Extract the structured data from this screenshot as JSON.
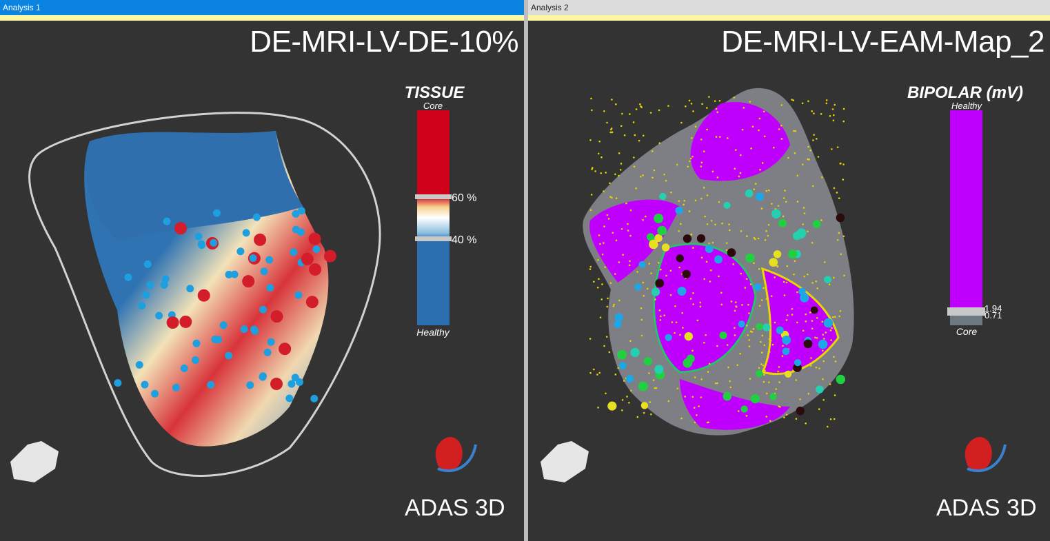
{
  "panels": [
    {
      "tab": "Analysis 1",
      "title": "DE-MRI-LV-DE-10%",
      "legend": {
        "title": "TISSUE",
        "top_label": "Core",
        "bottom_label": "Healthy",
        "markers": [
          "60 %",
          "40 %"
        ]
      },
      "logo": "ADAS 3D"
    },
    {
      "tab": "Analysis 2",
      "title": "DE-MRI-LV-EAM-Map_2",
      "legend": {
        "title": "BIPOLAR (mV)",
        "top_label": "Healthy",
        "bottom_label": "Core",
        "markers": [
          "1.94",
          "0.71"
        ]
      },
      "logo": "ADAS 3D"
    }
  ]
}
